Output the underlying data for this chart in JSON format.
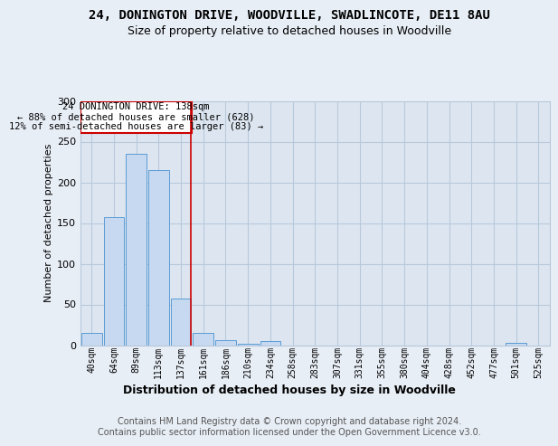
{
  "title": "24, DONINGTON DRIVE, WOODVILLE, SWADLINCOTE, DE11 8AU",
  "subtitle": "Size of property relative to detached houses in Woodville",
  "xlabel": "Distribution of detached houses by size in Woodville",
  "ylabel": "Number of detached properties",
  "bar_labels": [
    "40sqm",
    "64sqm",
    "89sqm",
    "113sqm",
    "137sqm",
    "161sqm",
    "186sqm",
    "210sqm",
    "234sqm",
    "258sqm",
    "283sqm",
    "307sqm",
    "331sqm",
    "355sqm",
    "380sqm",
    "404sqm",
    "428sqm",
    "452sqm",
    "477sqm",
    "501sqm",
    "525sqm"
  ],
  "bar_values": [
    15,
    157,
    235,
    215,
    57,
    15,
    6,
    2,
    5,
    0,
    0,
    0,
    0,
    0,
    0,
    0,
    0,
    0,
    0,
    3,
    0
  ],
  "bar_color": "#c6d9f0",
  "bar_edge_color": "#5b9bd5",
  "highlight_index": 4,
  "annotation_line1": "24 DONINGTON DRIVE: 138sqm",
  "annotation_line2": "← 88% of detached houses are smaller (628)",
  "annotation_line3": "12% of semi-detached houses are larger (83) →",
  "annotation_edge_color": "#cc0000",
  "vline_color": "#cc0000",
  "bg_color": "#e8eef6",
  "plot_bg_color": "#dde6f0",
  "grid_color": "#b8c8dc",
  "ylim": [
    0,
    300
  ],
  "yticks": [
    0,
    50,
    100,
    150,
    200,
    250,
    300
  ],
  "footer_text": "Contains HM Land Registry data © Crown copyright and database right 2024.\nContains public sector information licensed under the Open Government Licence v3.0."
}
